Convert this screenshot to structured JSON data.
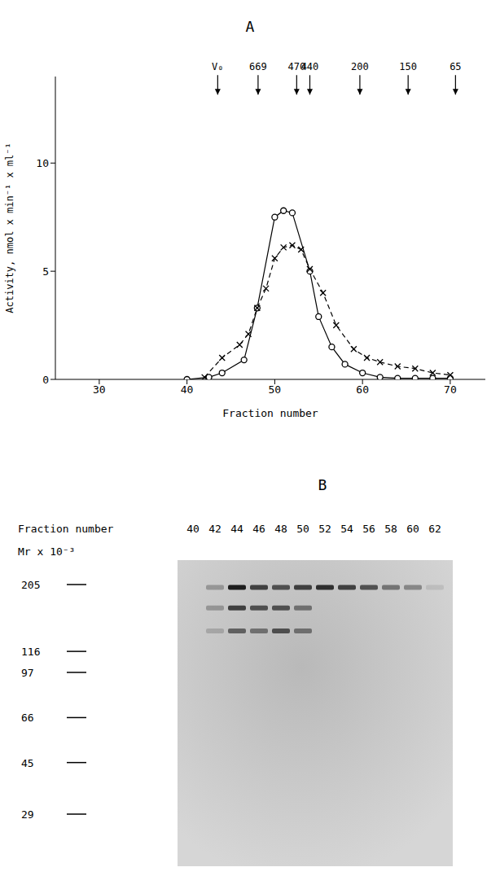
{
  "chart_data": {
    "type": "line",
    "title": "A",
    "x_label": "Fraction number",
    "y_label": "Activity, nmol x min⁻¹ x ml⁻¹",
    "xlim": [
      25,
      74
    ],
    "xticks": [
      30,
      40,
      50,
      60,
      70
    ],
    "ylim": [
      0,
      14
    ],
    "yticks": [
      0,
      5,
      10
    ],
    "annotations": [
      {
        "x": 43.5,
        "text": "V₀"
      },
      {
        "x": 48.1,
        "text": "669"
      },
      {
        "x": 52.5,
        "text": "470"
      },
      {
        "x": 54.0,
        "text": "440"
      },
      {
        "x": 59.7,
        "text": "200"
      },
      {
        "x": 65.2,
        "text": "150"
      },
      {
        "x": 70.6,
        "text": "65"
      }
    ],
    "series": [
      {
        "color": "#000000",
        "marker": "circle",
        "line_style": "solid",
        "x": [
          40,
          42.5,
          44,
          46.5,
          48,
          50,
          51,
          52,
          54,
          55,
          56.5,
          58,
          60,
          62,
          64,
          66,
          68,
          70
        ],
        "values": [
          0,
          0.1,
          0.3,
          0.9,
          3.3,
          7.5,
          7.8,
          7.7,
          5.0,
          2.9,
          1.5,
          0.7,
          0.3,
          0.1,
          0.05,
          0.05,
          0.05,
          0.05
        ]
      },
      {
        "color": "#000000",
        "marker": "cross",
        "line_style": "dashed",
        "x": [
          42,
          44,
          46,
          47,
          48,
          49,
          50,
          51,
          52,
          53,
          54,
          55.5,
          57,
          59,
          60.5,
          62,
          64,
          66,
          68,
          70
        ],
        "values": [
          0.1,
          1.0,
          1.6,
          2.1,
          3.3,
          4.2,
          5.6,
          6.1,
          6.2,
          6.0,
          5.1,
          4.0,
          2.5,
          1.4,
          1.0,
          0.8,
          0.6,
          0.5,
          0.3,
          0.2
        ]
      }
    ]
  },
  "gel": {
    "title": "B",
    "lane_header": "Fraction number",
    "lanes": [
      40,
      42,
      44,
      46,
      48,
      50,
      52,
      54,
      56,
      58,
      60,
      62
    ],
    "mr_label": "Mr x 10⁻³",
    "mr_markers": [
      205,
      116,
      97,
      66,
      45,
      29
    ],
    "bands": [
      {
        "mr": 200,
        "intensity": [
          0,
          0.3,
          1.0,
          0.8,
          0.7,
          0.8,
          0.9,
          0.8,
          0.7,
          0.5,
          0.4,
          0.1
        ]
      },
      {
        "mr": 168,
        "intensity": [
          0,
          0.3,
          0.8,
          0.7,
          0.7,
          0.5,
          0,
          0,
          0,
          0,
          0,
          0
        ]
      },
      {
        "mr": 138,
        "intensity": [
          0,
          0.2,
          0.6,
          0.5,
          0.7,
          0.5,
          0,
          0,
          0,
          0,
          0,
          0
        ]
      }
    ]
  }
}
